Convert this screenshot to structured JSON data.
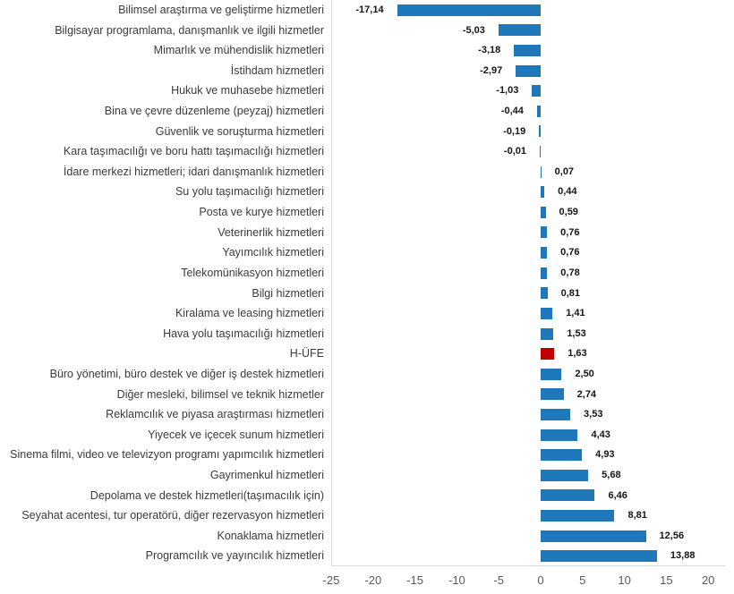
{
  "chart_data": {
    "type": "bar",
    "orientation": "horizontal",
    "title": "",
    "xlabel": "",
    "ylabel": "",
    "xlim": [
      -25,
      20
    ],
    "x_ticks": [
      -25,
      -20,
      -15,
      -10,
      -5,
      0,
      5,
      10,
      15,
      20
    ],
    "x_tick_labels": [
      "-25",
      "-20",
      "-15",
      "-10",
      "-5",
      "0",
      "5",
      "10",
      "15",
      "20"
    ],
    "grid": false,
    "legend": false,
    "bar_color": "#1e78ba",
    "highlight_color": "#c00000",
    "highlight_category": "H-ÜFE",
    "highlight_index": 17,
    "categories": [
      "Bilimsel araştırma ve geliştirme hizmetleri",
      "Bilgisayar programlama, danışmanlık ve ilgili hizmetler",
      "Mimarlık ve mühendislik hizmetleri",
      "İstihdam hizmetleri",
      "Hukuk ve muhasebe hizmetleri",
      "Bina ve çevre düzenleme (peyzaj) hizmetleri",
      "Güvenlik ve soruşturma hizmetleri",
      "Kara taşımacılığı ve boru hattı taşımacılığı hizmetleri",
      "İdare merkezi hizmetleri; idari danışmanlık hizmetleri",
      "Su yolu taşımacılığı hizmetleri",
      "Posta ve kurye hizmetleri",
      "Veterinerlik hizmetleri",
      "Yayımcılık hizmetleri",
      "Telekomünikasyon hizmetleri",
      "Bilgi hizmetleri",
      "Kiralama ve leasing hizmetleri",
      "Hava yolu taşımacılığı hizmetleri",
      "H-ÜFE",
      "Büro yönetimi, büro destek ve diğer iş destek hizmetleri",
      "Diğer mesleki, bilimsel ve teknik hizmetler",
      "Reklamcılık ve piyasa araştırması hizmetleri",
      "Yiyecek ve içecek sunum hizmetleri",
      "Sinema filmi, video ve televizyon programı yapımcılık hizmetleri",
      "Gayrimenkul hizmetleri",
      "Depolama ve destek hizmetleri(taşımacılık için)",
      "Seyahat acentesi, tur operatörü, diğer rezervasyon hizmetleri",
      "Konaklama hizmetleri",
      "Programcılık ve yayıncılık hizmetleri"
    ],
    "values": [
      -17.14,
      -5.03,
      -3.18,
      -2.97,
      -1.03,
      -0.44,
      -0.19,
      -0.01,
      0.07,
      0.44,
      0.59,
      0.76,
      0.76,
      0.78,
      0.81,
      1.41,
      1.53,
      1.63,
      2.5,
      2.74,
      3.53,
      4.43,
      4.93,
      5.68,
      6.46,
      8.81,
      12.56,
      13.88
    ],
    "value_labels": [
      "-17,14",
      "-5,03",
      "-3,18",
      "-2,97",
      "-1,03",
      "-0,44",
      "-0,19",
      "-0,01",
      "0,07",
      "0,44",
      "0,59",
      "0,76",
      "0,76",
      "0,78",
      "0,81",
      "1,41",
      "1,53",
      "1,63",
      "2,50",
      "2,74",
      "3,53",
      "4,43",
      "4,93",
      "5,68",
      "6,46",
      "8,81",
      "12,56",
      "13,88"
    ]
  }
}
